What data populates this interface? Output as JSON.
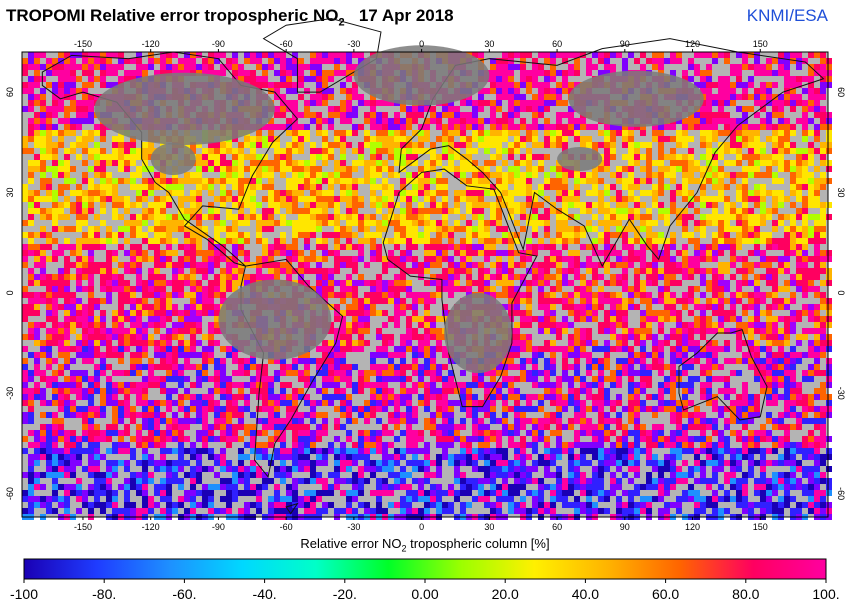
{
  "header": {
    "title_prefix": "TROPOMI Relative error tropospheric NO",
    "title_sub": "2",
    "date": "17 Apr 2018",
    "credit": "KNMI/ESA"
  },
  "axes": {
    "lon_ticks": [
      "-150",
      "-120",
      "-90",
      "-60",
      "-30",
      "0",
      "30",
      "60",
      "90",
      "120",
      "150"
    ],
    "lat_ticks": [
      "60",
      "30",
      "0",
      "-30",
      "-60"
    ]
  },
  "colorbar": {
    "label_prefix": "Relative error NO",
    "label_sub": "2",
    "label_suffix": " tropospheric column [%]",
    "ticks": [
      "-100",
      "-80.",
      "-60.",
      "-40.",
      "-20.",
      "0.00",
      "20.0",
      "40.0",
      "60.0",
      "80.0",
      "100."
    ],
    "colors": [
      "#1a00b4",
      "#1f3cff",
      "#1e90ff",
      "#00d8ff",
      "#00ffc8",
      "#00ff28",
      "#9cff00",
      "#fff000",
      "#ffb400",
      "#ff6400",
      "#ff0060",
      "#ff00a0"
    ]
  }
}
